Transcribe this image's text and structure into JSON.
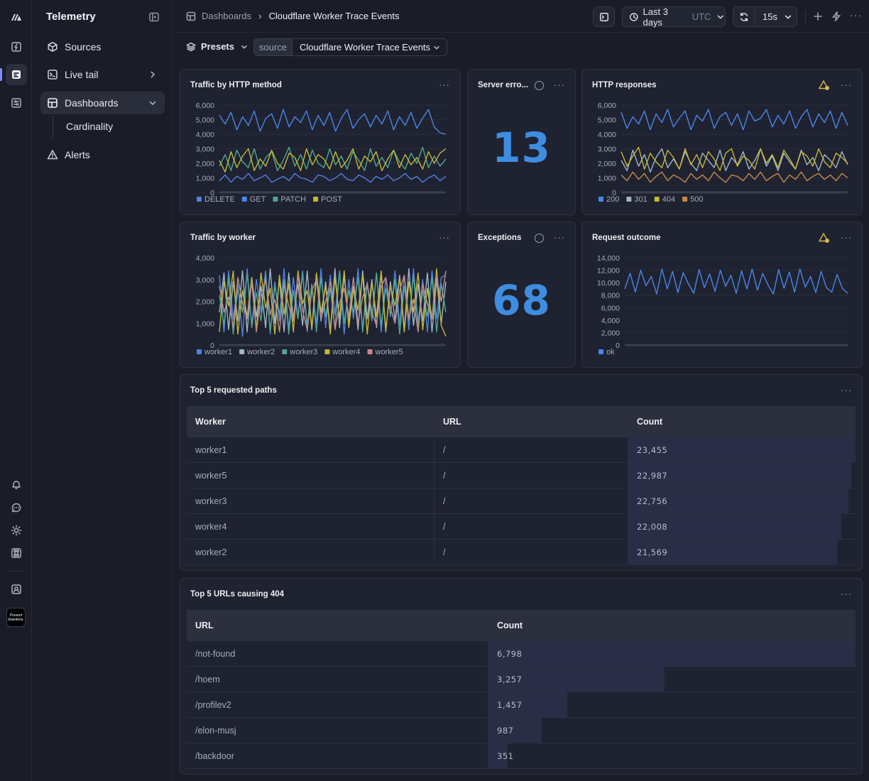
{
  "app": {
    "title": "Telemetry",
    "org_badge": "Prevent downtime."
  },
  "sidebar": {
    "items": [
      {
        "label": "Sources",
        "icon": "cube-icon"
      },
      {
        "label": "Live tail",
        "icon": "terminal-icon"
      },
      {
        "label": "Dashboards",
        "icon": "dashboard-grid-icon"
      },
      {
        "label": "Alerts",
        "icon": "warning-triangle-icon"
      }
    ],
    "sub_item": "Cardinality"
  },
  "topbar": {
    "breadcrumb_root": "Dashboards",
    "breadcrumb_current": "Cloudflare Worker Trace Events",
    "time_range": "Last 3 days",
    "timezone": "UTC",
    "refresh_interval": "15s"
  },
  "filters": {
    "presets_label": "Presets",
    "source_key": "source",
    "source_value": "Cloudflare Worker Trace Events"
  },
  "panels": {
    "http_method": {
      "title": "Traffic by HTTP method",
      "menu": "···"
    },
    "server_errors": {
      "title": "Server erro...",
      "value": "13",
      "menu": "···"
    },
    "http_responses": {
      "title": "HTTP responses",
      "menu": "···"
    },
    "by_worker": {
      "title": "Traffic by worker",
      "menu": "···"
    },
    "exceptions": {
      "title": "Exceptions",
      "value": "68",
      "menu": "···"
    },
    "request_outcome": {
      "title": "Request outcome",
      "menu": "···"
    },
    "top_paths": {
      "title": "Top 5 requested paths",
      "menu": "···",
      "columns": [
        "Worker",
        "URL",
        "Count"
      ],
      "rows": [
        {
          "worker": "worker1",
          "url": "/",
          "count": "23,455",
          "value": 23455
        },
        {
          "worker": "worker5",
          "url": "/",
          "count": "22,987",
          "value": 22987
        },
        {
          "worker": "worker3",
          "url": "/",
          "count": "22,756",
          "value": 22756
        },
        {
          "worker": "worker4",
          "url": "/",
          "count": "22,008",
          "value": 22008
        },
        {
          "worker": "worker2",
          "url": "/",
          "count": "21,569",
          "value": 21569
        }
      ]
    },
    "top_404": {
      "title": "Top 5 URLs causing 404",
      "menu": "···",
      "columns": [
        "URL",
        "Count"
      ],
      "rows": [
        {
          "url": "/not-found",
          "count": "6,798",
          "value": 6798
        },
        {
          "url": "/hoem",
          "count": "3,257",
          "value": 3257
        },
        {
          "url": "/profilev2",
          "count": "1,457",
          "value": 1457
        },
        {
          "url": "/elon-musj",
          "count": "987",
          "value": 987
        },
        {
          "url": "/backdoor",
          "count": "351",
          "value": 351
        }
      ]
    }
  },
  "colors": {
    "accent": "#7a8cff",
    "big_number": "#3e8de0",
    "warning": "#d6b84a"
  },
  "chart_data": [
    {
      "type": "line",
      "title": "Traffic by HTTP method",
      "ylim": [
        0,
        6000
      ],
      "yticks": [
        "0",
        "1,000",
        "2,000",
        "3,000",
        "4,000",
        "5,000",
        "6,000"
      ],
      "series": [
        {
          "name": "DELETE",
          "color": "#4f7fe0",
          "values": [
            800,
            1200,
            700,
            1100,
            900,
            1300,
            800,
            1000,
            1200,
            700,
            900,
            1100,
            800,
            1300,
            1000,
            900,
            700,
            1200,
            1100,
            800,
            1000,
            1300,
            900,
            800,
            1200,
            1000,
            700,
            1100,
            900,
            1200,
            800,
            1000,
            1300,
            900,
            1100,
            700,
            1000,
            1200,
            800,
            1100
          ]
        },
        {
          "name": "GET",
          "color": "#4a86e8",
          "values": [
            5300,
            4700,
            5500,
            4300,
            5200,
            4600,
            5600,
            4200,
            5100,
            5400,
            4400,
            5700,
            4500,
            5200,
            4800,
            5600,
            4300,
            5300,
            4600,
            5500,
            4200,
            5100,
            5700,
            4400,
            5000,
            5400,
            4500,
            5300,
            4700,
            5600,
            4300,
            5200,
            4600,
            5500,
            4400,
            5100,
            5700,
            4500,
            4100,
            4000
          ]
        },
        {
          "name": "PATCH",
          "color": "#4ea88f",
          "values": [
            1800,
            2600,
            1500,
            2900,
            2100,
            1700,
            3000,
            1600,
            2400,
            2800,
            1500,
            2200,
            3100,
            1800,
            2600,
            1600,
            2900,
            2000,
            1700,
            3000,
            1900,
            2500,
            1600,
            2800,
            2200,
            1500,
            3000,
            1800,
            2400,
            1700,
            2900,
            2100,
            1600,
            2700,
            2000,
            3100,
            1700,
            2500,
            1800,
            2300
          ]
        },
        {
          "name": "POST",
          "color": "#c7b733",
          "values": [
            2200,
            1400,
            2800,
            1700,
            2500,
            3000,
            1500,
            2300,
            1800,
            2900,
            2000,
            1600,
            2700,
            2400,
            1500,
            3000,
            1900,
            2600,
            2300,
            1600,
            2800,
            1700,
            2200,
            3000,
            1600,
            2500,
            2100,
            2800,
            1500,
            2300,
            2900,
            1700,
            2600,
            1900,
            2400,
            1600,
            2800,
            2000,
            2700,
            3000
          ]
        }
      ]
    },
    {
      "type": "line",
      "title": "HTTP responses",
      "ylim": [
        0,
        6000
      ],
      "yticks": [
        "0",
        "1,000",
        "2,000",
        "3,000",
        "4,000",
        "5,000",
        "6,000"
      ],
      "series": [
        {
          "name": "200",
          "color": "#4a86e8",
          "values": [
            5500,
            4400,
            5200,
            4700,
            5600,
            4300,
            5400,
            4800,
            5700,
            4500,
            5100,
            5600,
            4300,
            5300,
            4900,
            5700,
            4400,
            5200,
            5500,
            4600,
            5400,
            4300,
            5600,
            4900,
            5100,
            5700,
            4500,
            5300,
            4700,
            5600,
            4400,
            5200,
            5700,
            4500,
            5400,
            4800,
            5600,
            4400,
            5500,
            4600
          ]
        },
        {
          "name": "301",
          "color": "#9fb6c9",
          "values": [
            2200,
            1500,
            2900,
            1800,
            2600,
            1400,
            2400,
            3000,
            1700,
            2300,
            1600,
            2800,
            2000,
            1500,
            2700,
            2200,
            1700,
            2900,
            1500,
            2400,
            1900,
            2800,
            1600,
            2200,
            3000,
            1800,
            2500,
            1500,
            2700,
            2100,
            1600,
            2900,
            1900,
            2400,
            1500,
            2600,
            2200,
            1700,
            2800,
            1900
          ]
        },
        {
          "name": "404",
          "color": "#c7b733",
          "values": [
            2800,
            1800,
            2500,
            3100,
            1600,
            2700,
            2100,
            1700,
            2900,
            2400,
            1600,
            3000,
            1900,
            2600,
            1700,
            2800,
            2300,
            1500,
            2700,
            3000,
            1800,
            2500,
            2200,
            1600,
            3000,
            2000,
            2600,
            1700,
            2900,
            2300,
            1600,
            2800,
            2500,
            1800,
            3000,
            2100,
            1700,
            2700,
            2400,
            2000
          ]
        },
        {
          "name": "500",
          "color": "#c48a47",
          "values": [
            1200,
            800,
            1400,
            900,
            1300,
            700,
            1100,
            1400,
            800,
            1200,
            1000,
            700,
            1300,
            900,
            1200,
            800,
            1400,
            1000,
            700,
            1200,
            1100,
            800,
            1300,
            900,
            1400,
            800,
            1100,
            1300,
            700,
            1200,
            900,
            1400,
            800,
            1100,
            1300,
            900,
            1200,
            800,
            1300,
            1000
          ]
        }
      ]
    },
    {
      "type": "line",
      "title": "Traffic by worker",
      "ylim": [
        0,
        4000
      ],
      "yticks": [
        "0",
        "1,000",
        "2,000",
        "3,000",
        "4,000"
      ],
      "series": [
        {
          "name": "worker1",
          "color": "#4a86e8",
          "values": [
            3200,
            600,
            3400,
            1200,
            2800,
            400,
            3500,
            900,
            3000,
            1500,
            3400,
            500,
            2900,
            1100,
            3500,
            700,
            3100,
            1300,
            3400,
            600,
            2700,
            1000,
            3500,
            800,
            3200,
            1400,
            3400,
            500,
            3000,
            1200,
            3500,
            700,
            2900,
            1100,
            3300,
            600,
            3100,
            1300,
            3400,
            900,
            3200,
            700,
            3500,
            1000,
            3000,
            600,
            3400,
            1200,
            3100,
            3200
          ]
        },
        {
          "name": "worker2",
          "color": "#9fb6c9",
          "values": [
            1500,
            3300,
            700,
            2900,
            1100,
            3400,
            600,
            3100,
            1300,
            2700,
            800,
            3500,
            1000,
            3000,
            600,
            3300,
            1200,
            2800,
            900,
            3400,
            700,
            3100,
            1100,
            2900,
            600,
            3500,
            800,
            3200,
            1000,
            2700,
            700,
            3400,
            1200,
            3000,
            800,
            3300,
            600,
            2900,
            1100,
            3200,
            700,
            3500,
            900,
            2800,
            1100,
            3300,
            600,
            3000,
            1000,
            2900
          ]
        },
        {
          "name": "worker3",
          "color": "#4ea88f",
          "values": [
            2300,
            900,
            3100,
            500,
            2600,
            1500,
            3300,
            800,
            2400,
            1100,
            3200,
            600,
            2700,
            1400,
            3000,
            500,
            2500,
            1200,
            3300,
            900,
            2800,
            600,
            3100,
            1300,
            2600,
            800,
            3400,
            1000,
            2500,
            1500,
            3100,
            600,
            2800,
            1200,
            3300,
            900,
            2600,
            1400,
            3000,
            500,
            2700,
            1100,
            3200,
            800,
            2500,
            1300,
            3100,
            600,
            2800,
            1500
          ]
        },
        {
          "name": "worker4",
          "color": "#c7b733",
          "values": [
            600,
            2900,
            1800,
            3400,
            500,
            2500,
            1300,
            3100,
            700,
            3300,
            1700,
            2600,
            500,
            3200,
            1400,
            2800,
            600,
            3400,
            1900,
            2500,
            800,
            3300,
            1500,
            2700,
            500,
            3100,
            1200,
            3400,
            800,
            2600,
            1600,
            3200,
            500,
            2900,
            1300,
            3400,
            700,
            2700,
            1800,
            3100,
            600,
            2900,
            1500,
            3300,
            700,
            2600,
            1200,
            3500,
            900,
            400
          ]
        },
        {
          "name": "worker5",
          "color": "#c48a8a",
          "values": [
            2700,
            1500,
            2200,
            800,
            3100,
            1900,
            1200,
            2900,
            600,
            2300,
            3000,
            1400,
            2100,
            600,
            2800,
            1800,
            1100,
            3200,
            1600,
            700,
            2500,
            3000,
            1200,
            2000,
            2900,
            700,
            1900,
            2600,
            1300,
            3100,
            1000,
            2200,
            2800,
            1500,
            900,
            2700,
            3100,
            1700,
            1000,
            2500,
            3200,
            1200,
            2100,
            600,
            2800,
            1900,
            1200,
            3100,
            2000,
            3400
          ]
        }
      ]
    },
    {
      "type": "line",
      "title": "Request outcome",
      "ylim": [
        0,
        14000
      ],
      "yticks": [
        "0",
        "2,000",
        "4,000",
        "6,000",
        "8,000",
        "10,000",
        "12,000",
        "14,000"
      ],
      "series": [
        {
          "name": "ok",
          "color": "#4a86e8",
          "values": [
            9000,
            11500,
            8500,
            12000,
            9500,
            11000,
            8200,
            12200,
            9000,
            11800,
            8400,
            11600,
            9800,
            8300,
            12100,
            9200,
            11400,
            8600,
            12000,
            9400,
            11200,
            8300,
            11900,
            9000,
            12200,
            8800,
            11500,
            9600,
            8200,
            12100,
            9100,
            11700,
            8500,
            12200,
            9300,
            11000,
            8400,
            11800,
            9200,
            8500,
            11300,
            9100,
            8300
          ]
        }
      ]
    }
  ]
}
